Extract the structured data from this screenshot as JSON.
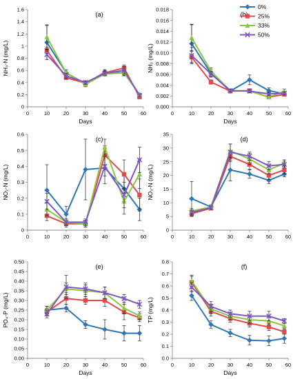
{
  "legend": {
    "position": "top-right",
    "items": [
      {
        "label": "0%",
        "color": "#2E75B6",
        "marker": "diamond"
      },
      {
        "label": "25%",
        "color": "#E04A4A",
        "marker": "square"
      },
      {
        "label": "33%",
        "color": "#8DC63F",
        "marker": "triangle"
      },
      {
        "label": "50%",
        "color": "#7E57C2",
        "marker": "x"
      }
    ]
  },
  "chart_data": [
    {
      "type": "line",
      "panel_label": "(a)",
      "xlabel": "Days",
      "ylabel": "NH₃-N (mg/L)",
      "xlim": [
        0,
        60
      ],
      "ylim": [
        0,
        1.6
      ],
      "xticks": [
        "0",
        "10",
        "20",
        "30",
        "40",
        "50",
        "60"
      ],
      "yticks": [
        "0",
        "0.2",
        "0.4",
        "0.6",
        "0.8",
        "1",
        "1.2",
        "1.4",
        "1.6"
      ],
      "series": [
        {
          "name": "0%",
          "x": [
            10,
            20,
            30,
            40,
            50,
            58
          ],
          "y": [
            1.06,
            0.56,
            0.38,
            0.57,
            0.56,
            0.2
          ],
          "err": [
            0.28,
            0.05,
            0.04,
            0.04,
            0.05,
            0.02
          ]
        },
        {
          "name": "25%",
          "x": [
            10,
            20,
            30,
            40,
            50,
            58
          ],
          "y": [
            0.93,
            0.48,
            0.39,
            0.56,
            0.64,
            0.16
          ],
          "err": [
            0.05,
            0.03,
            0.03,
            0.05,
            0.05,
            0.02
          ]
        },
        {
          "name": "33%",
          "x": [
            10,
            20,
            30,
            40,
            50,
            58
          ],
          "y": [
            1.15,
            0.56,
            0.37,
            0.54,
            0.56,
            0.2
          ],
          "err": [
            0.2,
            0.05,
            0.04,
            0.03,
            0.04,
            0.02
          ]
        },
        {
          "name": "50%",
          "x": [
            10,
            20,
            30,
            40,
            50,
            58
          ],
          "y": [
            0.86,
            0.51,
            0.4,
            0.55,
            0.6,
            0.19
          ],
          "err": [
            0.08,
            0.04,
            0.03,
            0.04,
            0.06,
            0.02
          ]
        }
      ]
    },
    {
      "type": "line",
      "panel_label": "(b)",
      "xlabel": "Days",
      "ylabel": "NH₃ (mg/L)",
      "xlim": [
        0,
        60
      ],
      "ylim": [
        0,
        0.018
      ],
      "xticks": [
        "0",
        "10",
        "20",
        "30",
        "40",
        "50",
        "60"
      ],
      "yticks": [
        "0.000",
        "0.002",
        "0.004",
        "0.006",
        "0.008",
        "0.010",
        "0.012",
        "0.014",
        "0.016",
        "0.018"
      ],
      "series": [
        {
          "name": "0%",
          "x": [
            10,
            20,
            30,
            40,
            50,
            58
          ],
          "y": [
            0.0117,
            0.0062,
            0.0029,
            0.005,
            0.003,
            0.0024
          ],
          "err": [
            0.0035,
            0.0007,
            0.0003,
            0.0009,
            0.0005,
            0.0003
          ]
        },
        {
          "name": "25%",
          "x": [
            10,
            20,
            30,
            40,
            50,
            58
          ],
          "y": [
            0.0092,
            0.0046,
            0.0029,
            0.003,
            0.0018,
            0.0023
          ],
          "err": [
            0.0012,
            0.0004,
            0.0003,
            0.0003,
            0.0002,
            0.0003
          ]
        },
        {
          "name": "33%",
          "x": [
            10,
            20,
            30,
            40,
            50,
            58
          ],
          "y": [
            0.0128,
            0.0066,
            0.003,
            0.0029,
            0.0018,
            0.0029
          ],
          "err": [
            0.0025,
            0.0006,
            0.0003,
            0.0003,
            0.0002,
            0.0004
          ]
        },
        {
          "name": "50%",
          "x": [
            10,
            20,
            30,
            40,
            50,
            58
          ],
          "y": [
            0.0095,
            0.0061,
            0.003,
            0.0029,
            0.0024,
            0.0025
          ],
          "err": [
            0.0015,
            0.0005,
            0.0003,
            0.0003,
            0.0003,
            0.0003
          ]
        }
      ]
    },
    {
      "type": "line",
      "panel_label": "(c)",
      "xlabel": "",
      "ylabel": "NO₂-N (mg/L)",
      "xlim": [
        0,
        60
      ],
      "ylim": [
        0,
        0.6
      ],
      "xticks": [
        "0",
        "10",
        "20",
        "30",
        "40",
        "50",
        "60"
      ],
      "yticks": [
        "0",
        "0.1",
        "0.2",
        "0.3",
        "0.4",
        "0.5",
        "0.6"
      ],
      "series": [
        {
          "name": "0%",
          "x": [
            10,
            20,
            30,
            40,
            50,
            58
          ],
          "y": [
            0.25,
            0.1,
            0.38,
            0.39,
            0.26,
            0.13
          ],
          "err": [
            0.16,
            0.05,
            0.19,
            0.1,
            0.08,
            0.07
          ]
        },
        {
          "name": "25%",
          "x": [
            10,
            20,
            30,
            40,
            50,
            58
          ],
          "y": [
            0.09,
            0.04,
            0.04,
            0.47,
            0.35,
            0.22
          ],
          "err": [
            0.03,
            0.02,
            0.02,
            0.06,
            0.09,
            0.1
          ]
        },
        {
          "name": "33%",
          "x": [
            10,
            20,
            30,
            40,
            50,
            58
          ],
          "y": [
            0.13,
            0.05,
            0.04,
            0.52,
            0.18,
            0.35
          ],
          "err": [
            0.04,
            0.02,
            0.02,
            0.05,
            0.08,
            0.09
          ]
        },
        {
          "name": "50%",
          "x": [
            10,
            20,
            30,
            40,
            50,
            58
          ],
          "y": [
            0.18,
            0.05,
            0.05,
            0.4,
            0.22,
            0.44
          ],
          "err": [
            0.05,
            0.02,
            0.02,
            0.06,
            0.08,
            0.08
          ]
        }
      ]
    },
    {
      "type": "line",
      "panel_label": "(d)",
      "xlabel": "",
      "ylabel": "NO₃-N (mg/L)",
      "xlim": [
        0,
        60
      ],
      "ylim": [
        0,
        35
      ],
      "xticks": [
        "0",
        "10",
        "20",
        "30",
        "40",
        "50",
        "60"
      ],
      "yticks": [
        "0",
        "5",
        "10",
        "15",
        "20",
        "25",
        "30",
        "35"
      ],
      "series": [
        {
          "name": "0%",
          "x": [
            10,
            20,
            30,
            40,
            50,
            58
          ],
          "y": [
            11.5,
            8.5,
            22,
            20.5,
            18.2,
            20.5
          ],
          "err": [
            6.3,
            0.8,
            4.0,
            1.5,
            1.2,
            1.0
          ]
        },
        {
          "name": "25%",
          "x": [
            10,
            20,
            30,
            40,
            50,
            58
          ],
          "y": [
            6.0,
            8.0,
            27,
            24,
            20,
            22
          ],
          "err": [
            1.0,
            0.5,
            2.0,
            1.8,
            1.5,
            1.5
          ]
        },
        {
          "name": "33%",
          "x": [
            10,
            20,
            30,
            40,
            50,
            58
          ],
          "y": [
            7.0,
            8.5,
            29,
            26,
            22,
            24.5
          ],
          "err": [
            1.0,
            0.5,
            2.5,
            2.0,
            1.5,
            1.2
          ]
        },
        {
          "name": "50%",
          "x": [
            10,
            20,
            30,
            40,
            50,
            58
          ],
          "y": [
            6.5,
            8.2,
            28.5,
            27,
            23.5,
            24
          ],
          "err": [
            1.0,
            0.5,
            3.0,
            1.5,
            1.5,
            1.2
          ]
        }
      ]
    },
    {
      "type": "line",
      "panel_label": "(e)",
      "xlabel": "Days",
      "ylabel": "PO₄-P (mg/L)",
      "xlim": [
        0,
        60
      ],
      "ylim": [
        0,
        0.5
      ],
      "xticks": [
        "0",
        "10",
        "20",
        "30",
        "40",
        "50",
        "60"
      ],
      "yticks": [
        "0.00",
        "0.05",
        "0.10",
        "0.15",
        "0.20",
        "0.25",
        "0.30",
        "0.35",
        "0.40",
        "0.45",
        "0.50"
      ],
      "series": [
        {
          "name": "0%",
          "x": [
            10,
            20,
            30,
            40,
            50,
            58
          ],
          "y": [
            0.25,
            0.26,
            0.175,
            0.15,
            0.13,
            0.13
          ],
          "err": [
            0.02,
            0.02,
            0.02,
            0.05,
            0.04,
            0.04
          ]
        },
        {
          "name": "25%",
          "x": [
            10,
            20,
            30,
            40,
            50,
            58
          ],
          "y": [
            0.24,
            0.31,
            0.3,
            0.3,
            0.24,
            0.21
          ],
          "err": [
            0.02,
            0.03,
            0.02,
            0.03,
            0.04,
            0.02
          ]
        },
        {
          "name": "33%",
          "x": [
            10,
            20,
            30,
            40,
            50,
            58
          ],
          "y": [
            0.25,
            0.36,
            0.35,
            0.34,
            0.26,
            0.22
          ],
          "err": [
            0.02,
            0.03,
            0.03,
            0.03,
            0.03,
            0.02
          ]
        },
        {
          "name": "50%",
          "x": [
            10,
            20,
            30,
            40,
            50,
            58
          ],
          "y": [
            0.23,
            0.37,
            0.36,
            0.34,
            0.31,
            0.28
          ],
          "err": [
            0.02,
            0.06,
            0.03,
            0.03,
            0.02,
            0.02
          ]
        }
      ]
    },
    {
      "type": "line",
      "panel_label": "(f)",
      "xlabel": "Days",
      "ylabel": "TP (mg/L)",
      "xlim": [
        0,
        60
      ],
      "ylim": [
        0,
        0.8
      ],
      "xticks": [
        "0",
        "10",
        "20",
        "30",
        "40",
        "50",
        "60"
      ],
      "yticks": [
        "0.0",
        "0.1",
        "0.2",
        "0.3",
        "0.4",
        "0.5",
        "0.6",
        "0.7",
        "0.8"
      ],
      "series": [
        {
          "name": "0%",
          "x": [
            10,
            20,
            30,
            40,
            50,
            58
          ],
          "y": [
            0.52,
            0.28,
            0.21,
            0.15,
            0.145,
            0.165
          ],
          "err": [
            0.04,
            0.03,
            0.03,
            0.04,
            0.04,
            0.04
          ]
        },
        {
          "name": "25%",
          "x": [
            10,
            20,
            30,
            40,
            50,
            58
          ],
          "y": [
            0.63,
            0.39,
            0.33,
            0.29,
            0.26,
            0.22
          ],
          "err": [
            0.05,
            0.04,
            0.03,
            0.03,
            0.03,
            0.02
          ]
        },
        {
          "name": "33%",
          "x": [
            10,
            20,
            30,
            40,
            50,
            58
          ],
          "y": [
            0.64,
            0.41,
            0.35,
            0.32,
            0.31,
            0.27
          ],
          "err": [
            0.05,
            0.04,
            0.03,
            0.03,
            0.03,
            0.02
          ]
        },
        {
          "name": "50%",
          "x": [
            10,
            20,
            30,
            40,
            50,
            58
          ],
          "y": [
            0.59,
            0.43,
            0.37,
            0.35,
            0.35,
            0.31
          ],
          "err": [
            0.04,
            0.04,
            0.03,
            0.04,
            0.04,
            0.02
          ]
        }
      ]
    }
  ]
}
